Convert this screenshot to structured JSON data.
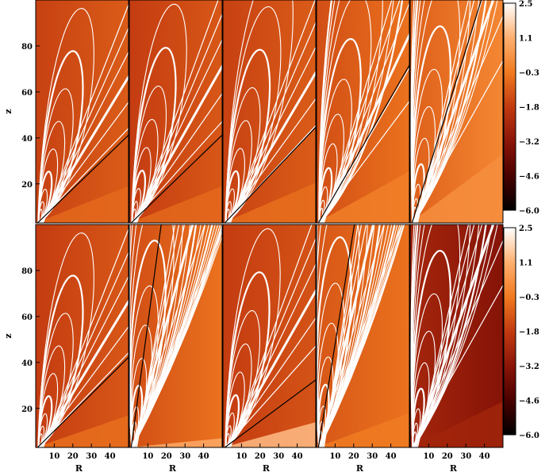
{
  "chart_data": {
    "type": "heatmap",
    "grid": {
      "rows": 2,
      "cols": 5
    },
    "xlabel": "R",
    "ylabel": "z",
    "x_ticks": [
      10,
      20,
      30,
      40
    ],
    "y_ticks": [
      20,
      40,
      60,
      80
    ],
    "xlim": [
      0,
      50
    ],
    "ylim": [
      3,
      100
    ],
    "colorbar": {
      "ticks": [
        "2.5",
        "1.1",
        "−0.3",
        "−1.8",
        "−3.2",
        "−4.6",
        "−6.0"
      ],
      "range": [
        -6.0,
        2.5
      ],
      "stops": [
        "#000000",
        "#4a0000",
        "#8b1508",
        "#c23a10",
        "#f07a20",
        "#ffb070",
        "#ffffff"
      ]
    },
    "panels": [
      {
        "bg": [
          -1.6,
          -1.0
        ],
        "wedge": -0.7,
        "wedge_slope": 0.32,
        "line_slope": 0.7,
        "curve_k": 9,
        "dark_line": 0.78
      },
      {
        "bg": [
          -1.7,
          -1.1
        ],
        "wedge": -0.7,
        "wedge_slope": 0.32,
        "line_slope": 0.75,
        "curve_k": 9,
        "dark_line": 0.78
      },
      {
        "bg": [
          -1.6,
          -1.0
        ],
        "wedge": -0.6,
        "wedge_slope": 0.35,
        "line_slope": 0.72,
        "curve_k": 10,
        "dark_line": 0.85
      },
      {
        "bg": [
          -1.3,
          -0.5
        ],
        "wedge": -0.2,
        "wedge_slope": 0.45,
        "line_slope": 0.9,
        "curve_k": 12,
        "dark_line": 1.4
      },
      {
        "bg": [
          -0.9,
          0.0
        ],
        "wedge": 0.2,
        "wedge_slope": 0.6,
        "line_slope": 1.2,
        "curve_k": 14,
        "dark_line": 2.6
      },
      {
        "bg": [
          -1.7,
          -1.1
        ],
        "wedge": -0.6,
        "wedge_slope": 0.28,
        "line_slope": 0.7,
        "curve_k": 9,
        "dark_line": 0.8
      },
      {
        "bg": [
          -1.3,
          -0.5
        ],
        "wedge": 0.9,
        "wedge_slope": 0.08,
        "line_slope": 1.6,
        "curve_k": 22,
        "dark_line": 6.0
      },
      {
        "bg": [
          -1.7,
          -1.2
        ],
        "wedge": 1.3,
        "wedge_slope": 0.22,
        "line_slope": 0.75,
        "curve_k": 9,
        "dark_line": 0.6
      },
      {
        "bg": [
          -1.1,
          -0.5
        ],
        "wedge": -0.3,
        "wedge_slope": 0.3,
        "line_slope": 1.8,
        "curve_k": 20,
        "dark_line": 5.0
      },
      {
        "bg": [
          -2.5,
          -3.3
        ],
        "wedge": -2.6,
        "wedge_slope": 0.4,
        "line_slope": 1.2,
        "curve_k": 14,
        "dark_line": 0.0
      }
    ]
  }
}
